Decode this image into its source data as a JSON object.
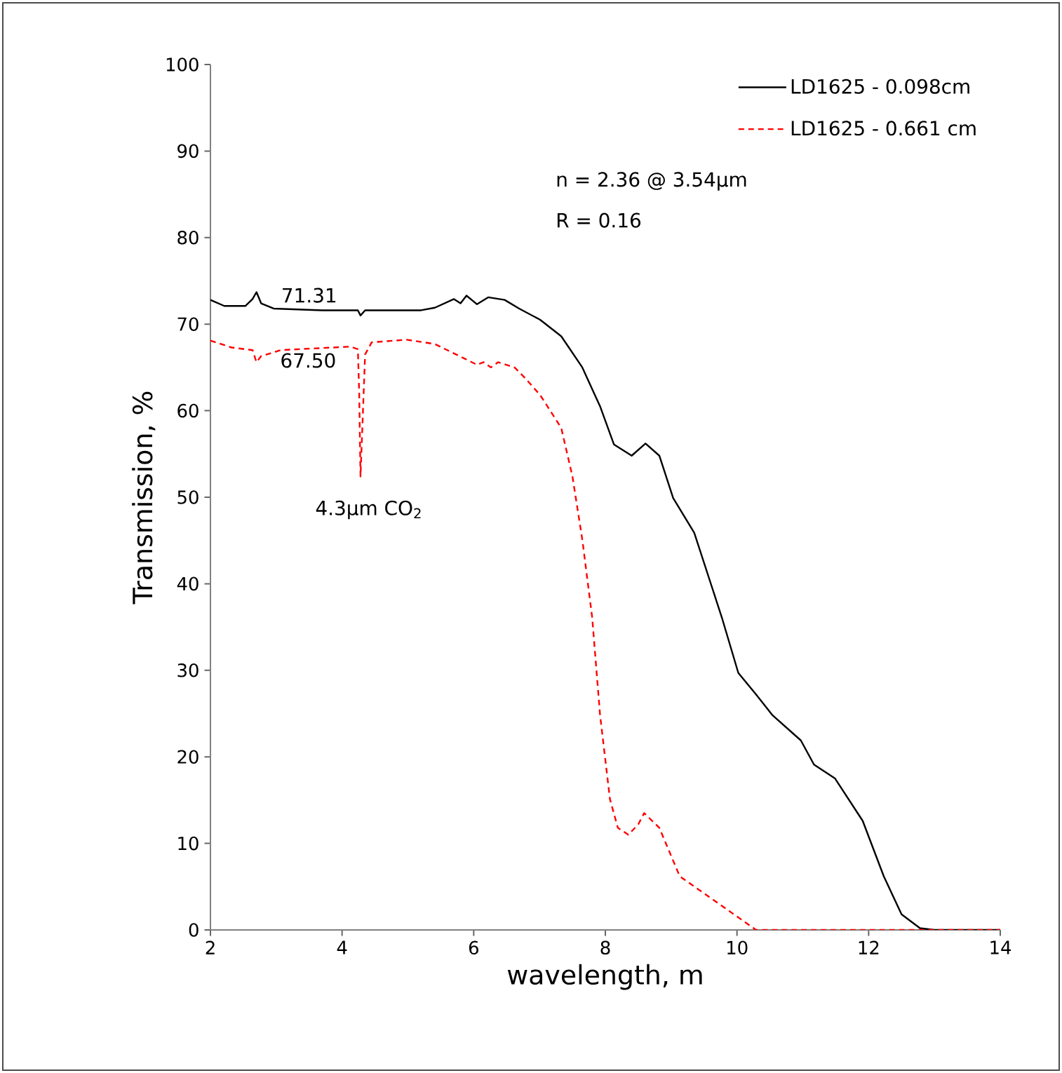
{
  "chart_data": {
    "type": "line",
    "xlabel": "wavelength, m",
    "ylabel": "Transmission, %",
    "xlim": [
      2,
      14
    ],
    "ylim": [
      0,
      100
    ],
    "xticks": [
      2,
      4,
      6,
      8,
      10,
      12,
      14
    ],
    "yticks": [
      0,
      10,
      20,
      30,
      40,
      50,
      60,
      70,
      80,
      90,
      100
    ],
    "grid": false,
    "legend": "top right",
    "series": [
      {
        "name": "LD1625 - 0.098cm",
        "color": "#000000",
        "line_style": "solid",
        "x": [
          2.0,
          2.21,
          2.53,
          2.64,
          2.7,
          2.77,
          2.96,
          3.7,
          4.24,
          4.28,
          4.35,
          5.2,
          5.41,
          5.7,
          5.8,
          5.89,
          6.05,
          6.22,
          6.47,
          6.69,
          7.01,
          7.33,
          7.65,
          7.92,
          8.13,
          8.4,
          8.61,
          8.82,
          9.03,
          9.35,
          9.56,
          9.77,
          10.02,
          10.29,
          10.54,
          10.97,
          11.17,
          11.49,
          11.91,
          12.23,
          12.5,
          12.78,
          13.0,
          13.5,
          14.0
        ],
        "values": [
          72.8,
          72.1,
          72.1,
          72.9,
          73.7,
          72.4,
          71.8,
          71.6,
          71.6,
          71.0,
          71.6,
          71.6,
          71.9,
          72.9,
          72.4,
          73.3,
          72.3,
          73.1,
          72.8,
          71.8,
          70.5,
          68.6,
          65.0,
          60.5,
          56.1,
          54.8,
          56.2,
          54.8,
          49.9,
          45.9,
          41.0,
          36.1,
          29.7,
          27.2,
          24.8,
          21.9,
          19.1,
          17.5,
          12.6,
          6.2,
          1.8,
          0.2,
          0,
          0,
          0
        ]
      },
      {
        "name": "LD1625 - 0.661 cm",
        "color": "#ff0000",
        "line_style": "dashed",
        "x": [
          2.0,
          2.32,
          2.64,
          2.7,
          2.77,
          3.07,
          4.13,
          4.24,
          4.26,
          4.28,
          4.35,
          4.45,
          4.98,
          5.41,
          5.84,
          6.05,
          6.15,
          6.26,
          6.37,
          6.62,
          6.79,
          7.01,
          7.33,
          7.5,
          7.65,
          7.8,
          7.92,
          8.07,
          8.19,
          8.35,
          8.5,
          8.59,
          8.82,
          9.13,
          10.29,
          14.0
        ],
        "values": [
          68.1,
          67.3,
          67.0,
          65.6,
          66.3,
          67.0,
          67.4,
          67.1,
          62.1,
          52.4,
          66.5,
          67.9,
          68.2,
          67.7,
          66.1,
          65.3,
          65.6,
          65.0,
          65.6,
          65.0,
          63.7,
          61.8,
          58.0,
          52.4,
          45.1,
          36.1,
          24.8,
          15.1,
          11.8,
          11.0,
          12.2,
          13.5,
          11.8,
          6.2,
          0,
          0
        ]
      }
    ],
    "annotations": [
      {
        "text": "71.31",
        "x": 3.5,
        "y": 71.31
      },
      {
        "text": "67.50",
        "x": 3.4,
        "y": 67.5
      },
      {
        "text": "4.3µm CO$_{2}$",
        "x": 4.28,
        "y": 52.4
      },
      "n = 2.36 @ 3.54µm",
      "R = 0.16"
    ]
  }
}
